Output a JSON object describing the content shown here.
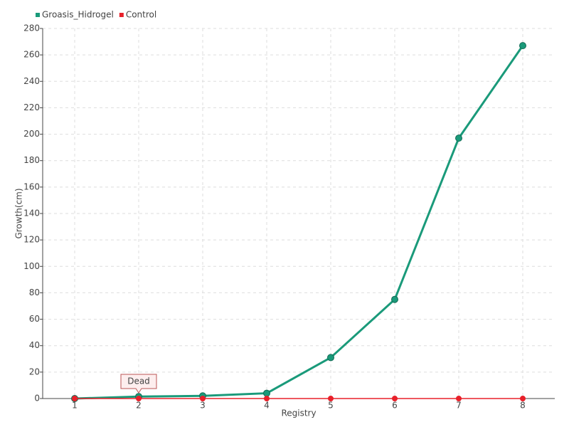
{
  "chart_data": {
    "type": "line",
    "x_label": "Registry",
    "y_label": "Growth(cm)",
    "categories": [
      "1",
      "2",
      "3",
      "4",
      "5",
      "6",
      "7",
      "8"
    ],
    "series": [
      {
        "name": "Groasis_Hidrogel",
        "color": "#1a9a7a",
        "values": [
          0,
          1.5,
          2,
          4,
          31,
          75,
          197,
          267
        ]
      },
      {
        "name": "Control",
        "color": "#e8202a",
        "values": [
          0,
          0,
          0,
          0,
          0,
          0,
          0,
          0
        ]
      }
    ],
    "annotation": "Dead",
    "ylim": [
      0,
      280
    ],
    "yticks": [
      0,
      20,
      40,
      60,
      80,
      100,
      120,
      140,
      160,
      180,
      200,
      220,
      240,
      260,
      280
    ],
    "grid": true,
    "legend": "top-left"
  }
}
